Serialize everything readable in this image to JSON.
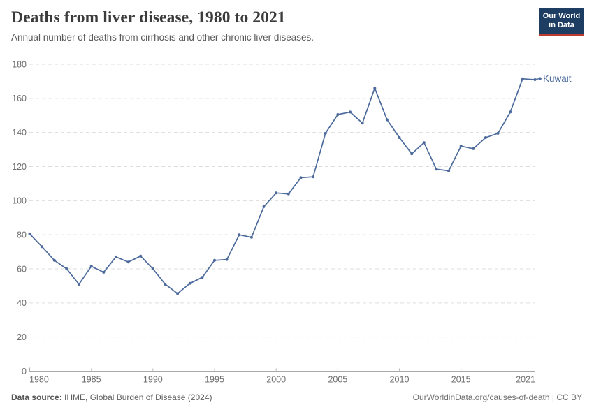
{
  "header": {
    "title": "Deaths from liver disease, 1980 to 2021",
    "subtitle": "Annual number of deaths from cirrhosis and other chronic liver diseases.",
    "logo": {
      "line1": "Our World",
      "line2": "in Data"
    }
  },
  "chart_data": {
    "type": "line",
    "title": "Deaths from liver disease, 1980 to 2021",
    "xlabel": "",
    "ylabel": "",
    "x_range": [
      1980,
      2021
    ],
    "ylim": [
      0,
      180
    ],
    "yticks": [
      0,
      20,
      40,
      60,
      80,
      100,
      120,
      140,
      160,
      180
    ],
    "xticks": [
      1980,
      1985,
      1990,
      1995,
      2000,
      2005,
      2010,
      2015,
      2021
    ],
    "grid": "horizontal-dashed",
    "legend": "end-of-line-label",
    "x": [
      1980,
      1981,
      1982,
      1983,
      1984,
      1985,
      1986,
      1987,
      1988,
      1989,
      1990,
      1991,
      1992,
      1993,
      1994,
      1995,
      1996,
      1997,
      1998,
      1999,
      2000,
      2001,
      2002,
      2003,
      2004,
      2005,
      2006,
      2007,
      2008,
      2009,
      2010,
      2011,
      2012,
      2013,
      2014,
      2015,
      2016,
      2017,
      2018,
      2019,
      2020,
      2021
    ],
    "series": [
      {
        "name": "Kuwait",
        "color": "#4c6a9c",
        "values": [
          80.5,
          73,
          65,
          60,
          51,
          61.5,
          58,
          67,
          64,
          67.5,
          60,
          51,
          45.5,
          51.5,
          55,
          65,
          65.5,
          80,
          78.5,
          96.5,
          104.5,
          104,
          113.5,
          114,
          139.5,
          150.5,
          152,
          145.5,
          166,
          147.5,
          137,
          127.5,
          134,
          118.5,
          117.5,
          132,
          130.5,
          137,
          139.5,
          152,
          171.5,
          171
        ]
      }
    ]
  },
  "footer": {
    "source_label": "Data source:",
    "source_text": "IHME, Global Burden of Disease (2024)",
    "citation": "OurWorldinData.org/causes-of-death | CC BY"
  },
  "colors": {
    "line": "#4c6a9c",
    "title_text": "#3b3b3b",
    "subtitle_text": "#595959",
    "axis_text": "#6e6e6e",
    "gridline": "#dddddd",
    "axis_line": "#a9a9a9",
    "tick": "#bbbbbb",
    "logo_bg": "#1d3d63",
    "logo_stripe": "#c13a32"
  }
}
